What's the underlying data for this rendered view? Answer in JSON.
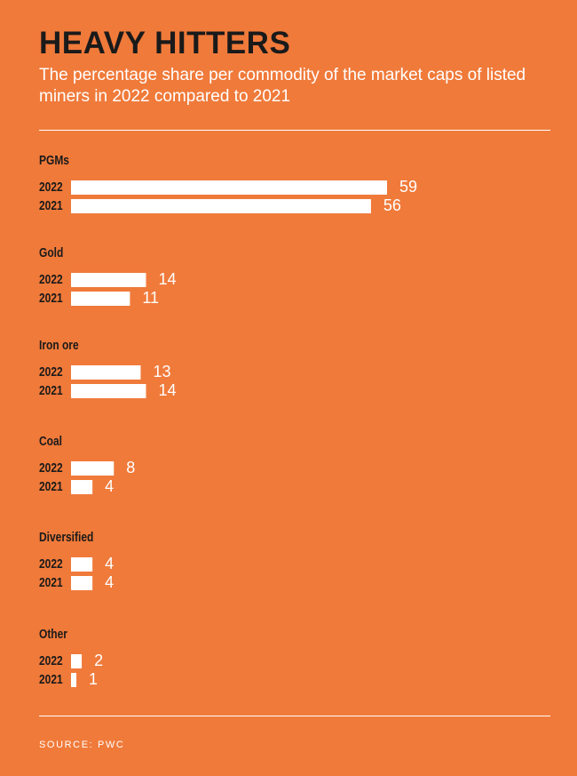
{
  "title": "HEAVY HITTERS",
  "subtitle": "The percentage share per commodity of the market caps of listed miners in 2022 compared to 2021",
  "source": "SOURCE: PWC",
  "colors": {
    "background": "#F07A3A",
    "bar": "#FFFFFF",
    "text_dark": "#1A1A1A",
    "text_light": "#FFFFFF"
  },
  "chart_data": {
    "type": "bar",
    "orientation": "horizontal",
    "series_labels": [
      "2022",
      "2021"
    ],
    "groups": [
      {
        "category": "PGMs",
        "values": [
          59,
          56
        ]
      },
      {
        "category": "Gold",
        "values": [
          14,
          11
        ]
      },
      {
        "category": "Iron ore",
        "values": [
          13,
          14
        ]
      },
      {
        "category": "Coal",
        "values": [
          8,
          4
        ]
      },
      {
        "category": "Diversified",
        "values": [
          4,
          4
        ]
      },
      {
        "category": "Other",
        "values": [
          2,
          1
        ]
      }
    ],
    "xlim": [
      0,
      59
    ],
    "grid": false,
    "legend": "none"
  }
}
